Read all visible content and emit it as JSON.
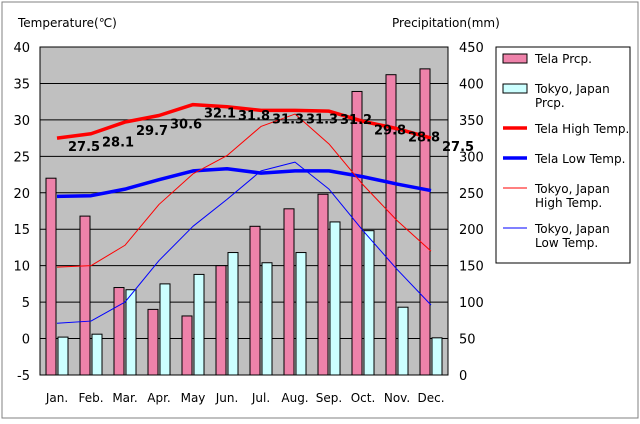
{
  "chart_data": {
    "type": "bar+line",
    "categories": [
      "Jan.",
      "Feb.",
      "Mar.",
      "Apr.",
      "May",
      "Jun.",
      "Jul.",
      "Aug.",
      "Sep.",
      "Oct.",
      "Nov.",
      "Dec."
    ],
    "left_axis": {
      "label": "Temperature(℃)",
      "range": [
        -5,
        40
      ],
      "ticks": [
        -5,
        0,
        5,
        10,
        15,
        20,
        25,
        30,
        35,
        40
      ]
    },
    "right_axis": {
      "label": "Precipitation(mm)",
      "range": [
        0,
        450
      ],
      "ticks": [
        0,
        50,
        100,
        150,
        200,
        250,
        300,
        350,
        400,
        450
      ]
    },
    "grid": true,
    "legend_position": "right",
    "bar_series": [
      {
        "name": "Tela Prcp.",
        "axis": "right",
        "color": "#ee82aa",
        "values": [
          270,
          218,
          120,
          90,
          81,
          150,
          204,
          228,
          248,
          389,
          412,
          420
        ]
      },
      {
        "name": "Tokyo, Japan Prcp.",
        "axis": "right",
        "color": "#ccffff",
        "values": [
          52,
          56,
          117,
          125,
          138,
          168,
          154,
          168,
          210,
          198,
          93,
          51
        ]
      }
    ],
    "line_series": [
      {
        "name": "Tela High Temp.",
        "axis": "left",
        "color": "#ff0000",
        "weight": "thick",
        "values": [
          27.5,
          28.1,
          29.7,
          30.6,
          32.1,
          31.8,
          31.3,
          31.3,
          31.2,
          29.8,
          28.8,
          27.5
        ],
        "labels": [
          "27.5",
          "28.1",
          "29.7",
          "30.6",
          "32.1",
          "31.8",
          "31.3",
          "31.3",
          "31.2",
          "29.8",
          "28.8",
          "27.5"
        ]
      },
      {
        "name": "Tela Low Temp.",
        "axis": "left",
        "color": "#0000ff",
        "weight": "thick",
        "values": [
          19.5,
          19.6,
          20.5,
          21.8,
          23.0,
          23.3,
          22.7,
          23.0,
          23.0,
          22.2,
          21.2,
          20.3
        ]
      },
      {
        "name": "Tokyo, Japan High Temp.",
        "axis": "left",
        "color": "#ff0000",
        "weight": "thin",
        "values": [
          9.8,
          10.0,
          12.8,
          18.4,
          22.6,
          25.1,
          29.1,
          30.8,
          26.7,
          21.1,
          16.2,
          12.0
        ]
      },
      {
        "name": "Tokyo, Japan Low Temp.",
        "axis": "left",
        "color": "#0000ff",
        "weight": "thin",
        "values": [
          2.1,
          2.4,
          5.0,
          10.7,
          15.4,
          19.1,
          23.0,
          24.2,
          20.5,
          14.8,
          9.5,
          4.6
        ]
      }
    ],
    "legend": [
      {
        "kind": "bar",
        "color": "#ee82aa",
        "lines": [
          "Tela Prcp."
        ]
      },
      {
        "kind": "bar",
        "color": "#ccffff",
        "lines": [
          "Tokyo, Japan",
          "Prcp."
        ]
      },
      {
        "kind": "line",
        "color": "#ff0000",
        "weight": "thick",
        "lines": [
          "Tela High Temp."
        ]
      },
      {
        "kind": "line",
        "color": "#0000ff",
        "weight": "thick",
        "lines": [
          "Tela Low Temp."
        ]
      },
      {
        "kind": "line",
        "color": "#ff0000",
        "weight": "thin",
        "lines": [
          "Tokyo, Japan",
          "High Temp."
        ]
      },
      {
        "kind": "line",
        "color": "#0000ff",
        "weight": "thin",
        "lines": [
          "Tokyo, Japan",
          "Low Temp."
        ]
      }
    ]
  }
}
